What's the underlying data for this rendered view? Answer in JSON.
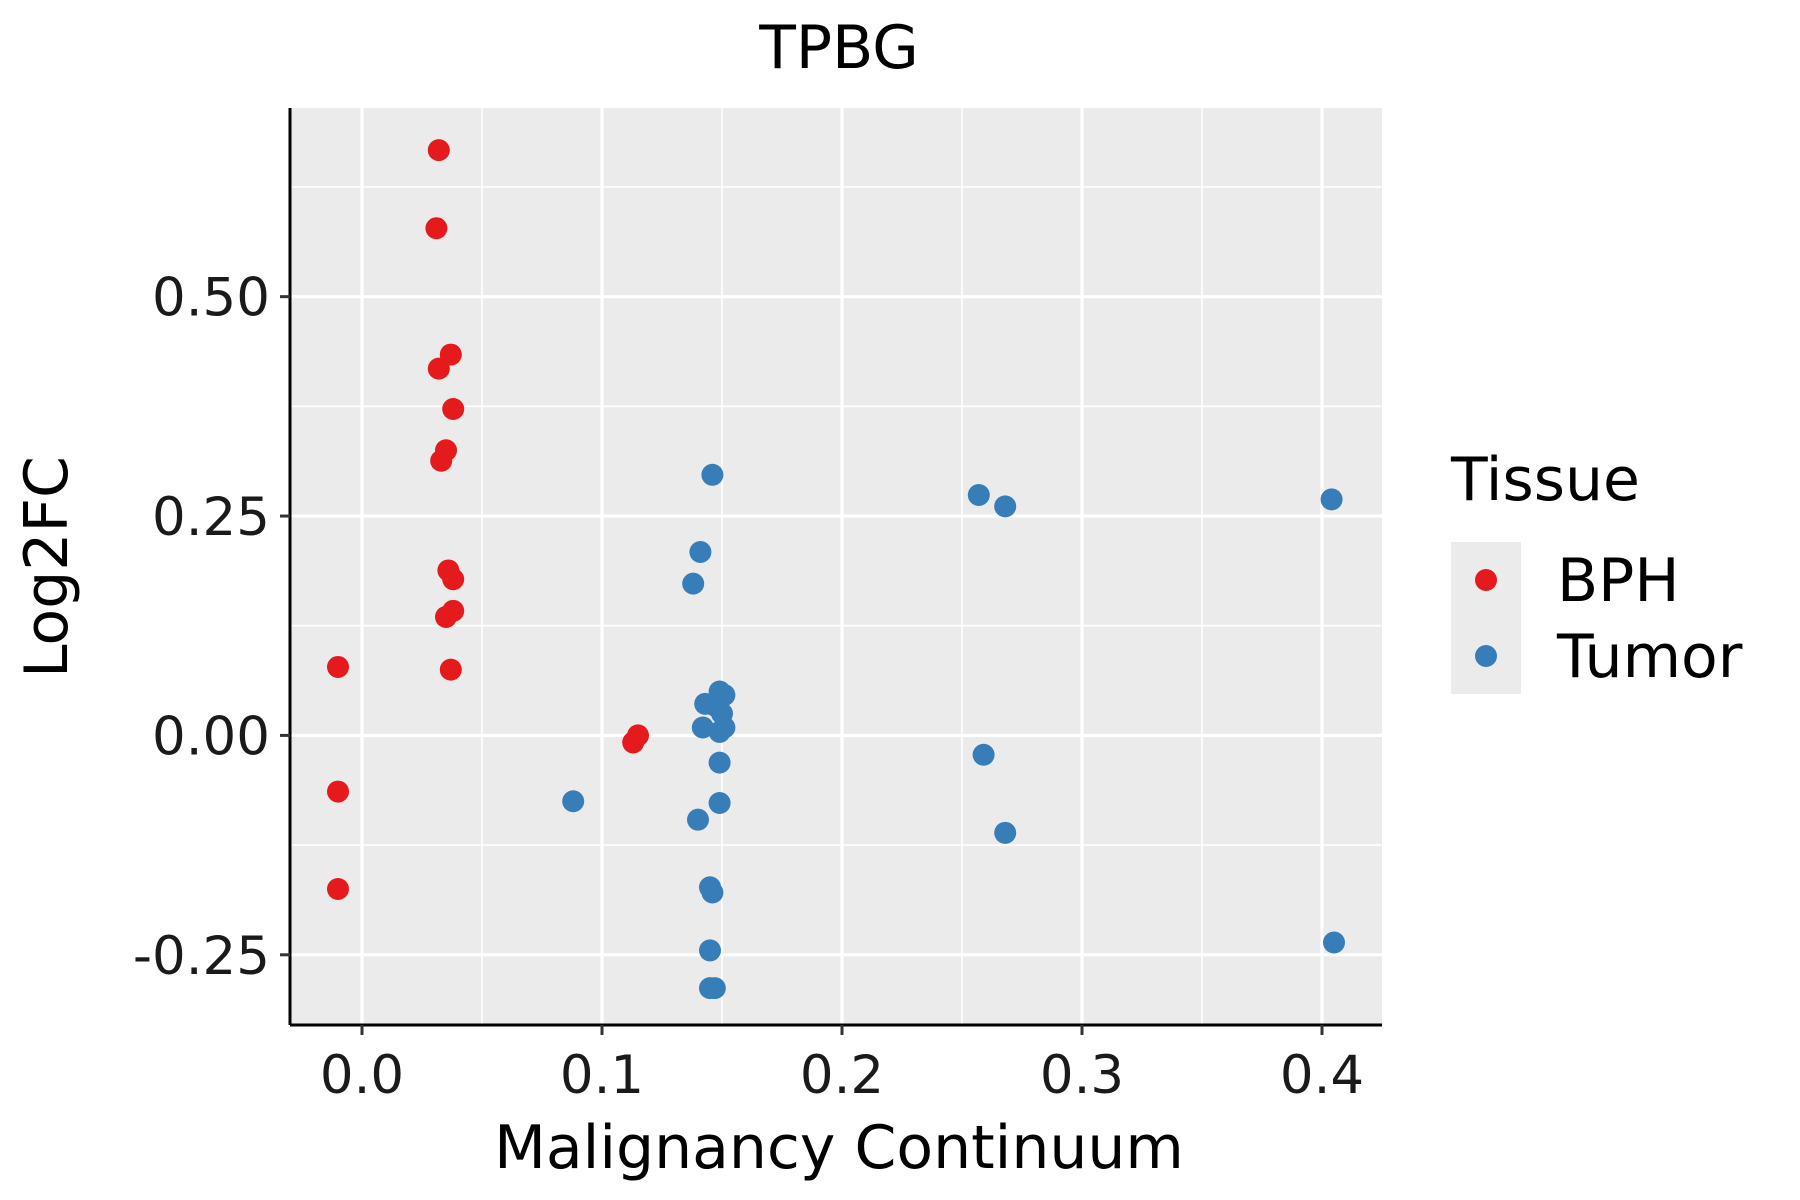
{
  "chart_data": {
    "type": "scatter",
    "title": "TPBG",
    "xlabel": "Malignancy Continuum",
    "ylabel": "Log2FC",
    "xlim": [
      -0.03,
      0.425
    ],
    "ylim": [
      -0.33,
      0.715
    ],
    "xticks": [
      0.0,
      0.1,
      0.2,
      0.3,
      0.4
    ],
    "xtick_labels": [
      "0.0",
      "0.1",
      "0.2",
      "0.3",
      "0.4"
    ],
    "yticks": [
      -0.25,
      0.0,
      0.25,
      0.5
    ],
    "ytick_labels": [
      "-0.25",
      "0.00",
      "0.25",
      "0.50"
    ],
    "grid": true,
    "legend": {
      "title": "Tissue",
      "position": "right"
    },
    "series": [
      {
        "name": "BPH",
        "color": "#e41a1c",
        "points": [
          [
            0.032,
            0.667
          ],
          [
            0.031,
            0.578
          ],
          [
            0.037,
            0.434
          ],
          [
            0.032,
            0.418
          ],
          [
            0.038,
            0.372
          ],
          [
            0.035,
            0.325
          ],
          [
            0.033,
            0.313
          ],
          [
            0.036,
            0.188
          ],
          [
            0.038,
            0.178
          ],
          [
            0.038,
            0.142
          ],
          [
            0.035,
            0.135
          ],
          [
            0.037,
            0.075
          ],
          [
            -0.01,
            0.078
          ],
          [
            -0.01,
            -0.064
          ],
          [
            -0.01,
            -0.175
          ],
          [
            0.115,
            0.0
          ],
          [
            0.113,
            -0.008
          ]
        ]
      },
      {
        "name": "Tumor",
        "color": "#377eb8",
        "points": [
          [
            0.146,
            0.297
          ],
          [
            0.141,
            0.209
          ],
          [
            0.138,
            0.173
          ],
          [
            0.149,
            0.05
          ],
          [
            0.151,
            0.046
          ],
          [
            0.143,
            0.036
          ],
          [
            0.147,
            0.034
          ],
          [
            0.15,
            0.025
          ],
          [
            0.142,
            0.009
          ],
          [
            0.151,
            0.009
          ],
          [
            0.149,
            0.004
          ],
          [
            0.149,
            -0.031
          ],
          [
            0.088,
            -0.075
          ],
          [
            0.149,
            -0.077
          ],
          [
            0.14,
            -0.096
          ],
          [
            0.145,
            -0.173
          ],
          [
            0.146,
            -0.179
          ],
          [
            0.145,
            -0.245
          ],
          [
            0.145,
            -0.288
          ],
          [
            0.147,
            -0.288
          ],
          [
            0.257,
            0.274
          ],
          [
            0.268,
            0.261
          ],
          [
            0.259,
            -0.022
          ],
          [
            0.268,
            -0.111
          ],
          [
            0.404,
            0.269
          ],
          [
            0.405,
            -0.236
          ]
        ]
      }
    ]
  }
}
